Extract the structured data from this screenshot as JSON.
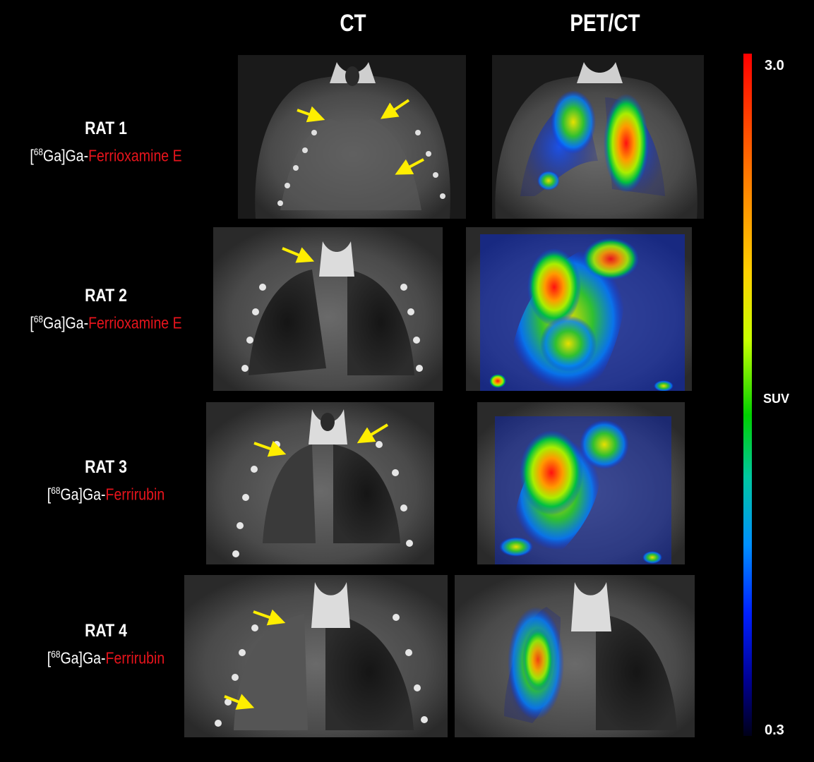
{
  "headers": {
    "ct": "CT",
    "petct": "PET/CT"
  },
  "rows": [
    {
      "rat": "RAT 1",
      "tracer_prefix": "[",
      "tracer_sup": "68",
      "tracer_mid": "Ga]Ga-",
      "drug": "Ferrioxamine E"
    },
    {
      "rat": "RAT 2",
      "tracer_prefix": "[",
      "tracer_sup": "68",
      "tracer_mid": "Ga]Ga-",
      "drug": "Ferrioxamine E"
    },
    {
      "rat": "RAT 3",
      "tracer_prefix": "[",
      "tracer_sup": "68",
      "tracer_mid": "Ga]Ga-",
      "drug": "Ferrirubin"
    },
    {
      "rat": "RAT 4",
      "tracer_prefix": "[",
      "tracer_sup": "68",
      "tracer_mid": "Ga]Ga-",
      "drug": "Ferrirubin"
    }
  ],
  "colorbar": {
    "max": "3.0",
    "min": "0.3",
    "unit": "SUV"
  },
  "colors": {
    "drug": "#e8141c",
    "arrow": "#ffee00"
  },
  "icons": {
    "arrow": "arrow-icon"
  }
}
